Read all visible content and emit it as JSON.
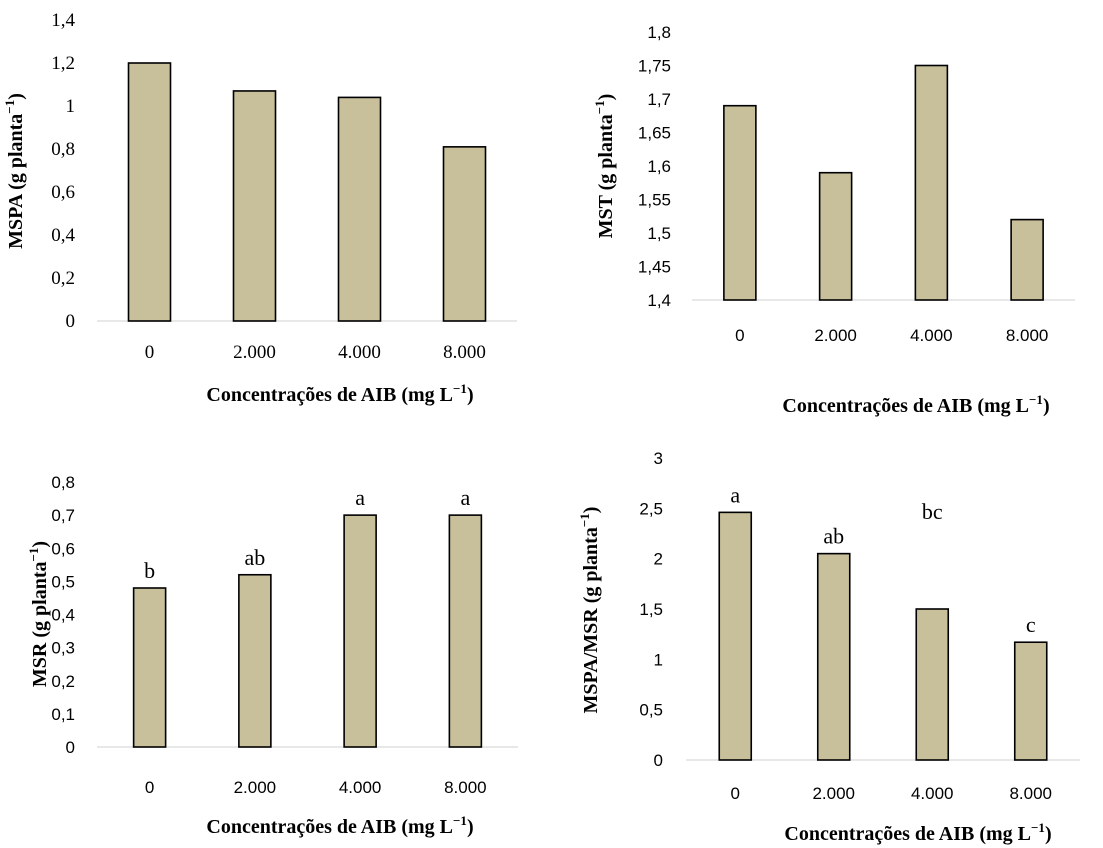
{
  "chart_data": [
    {
      "type": "bar",
      "categories": [
        "0",
        "2.000",
        "4.000",
        "8.000"
      ],
      "values": [
        1.2,
        1.07,
        1.04,
        0.81
      ],
      "ylim": [
        0,
        1.4
      ],
      "yticks": [
        "0",
        "0,2",
        "0,4",
        "0,6",
        "0,8",
        "1",
        "1,2",
        "1,4"
      ],
      "ylabel": "MSPA (g planta⁻¹)",
      "xlabel": "Concentrações de AIB (mg L⁻¹)",
      "annotations": [
        "",
        "",
        "",
        ""
      ],
      "grid": false,
      "bar_color": "#c8bf9b"
    },
    {
      "type": "bar",
      "categories": [
        "0",
        "2.000",
        "4.000",
        "8.000"
      ],
      "values": [
        1.69,
        1.59,
        1.75,
        1.52
      ],
      "ylim": [
        1.4,
        1.8
      ],
      "yticks": [
        "1,4",
        "1,45",
        "1,5",
        "1,55",
        "1,6",
        "1,65",
        "1,7",
        "1,75",
        "1,8"
      ],
      "ylabel": "MST (g planta⁻¹)",
      "xlabel": "Concentrações de AIB (mg L⁻¹)",
      "annotations": [
        "",
        "",
        "",
        ""
      ],
      "grid": false,
      "bar_color": "#c8bf9b"
    },
    {
      "type": "bar",
      "categories": [
        "0",
        "2.000",
        "4.000",
        "8.000"
      ],
      "values": [
        0.48,
        0.52,
        0.7,
        0.7
      ],
      "ylim": [
        0,
        0.8
      ],
      "yticks": [
        "0",
        "0,1",
        "0,2",
        "0,3",
        "0,4",
        "0,5",
        "0,6",
        "0,7",
        "0,8"
      ],
      "ylabel": "MSR (g planta⁻¹)",
      "xlabel": "Concentrações de AIB (mg L⁻¹)",
      "annotations": [
        "b",
        "ab",
        "a",
        "a"
      ],
      "grid": false,
      "bar_color": "#c8bf9b"
    },
    {
      "type": "bar",
      "categories": [
        "0",
        "2.000",
        "4.000",
        "8.000"
      ],
      "values": [
        2.46,
        2.05,
        1.5,
        1.17
      ],
      "ylim": [
        0,
        3
      ],
      "yticks": [
        "0",
        "0,5",
        "1",
        "1,5",
        "2",
        "2,5",
        "3"
      ],
      "ylabel": "MSPA/MSR (g planta⁻¹)",
      "xlabel": "Concentrações de AIB (mg L⁻¹)",
      "annotations": [
        "a",
        "ab",
        "bc",
        "c"
      ],
      "grid": false,
      "bar_color": "#c8bf9b"
    }
  ]
}
